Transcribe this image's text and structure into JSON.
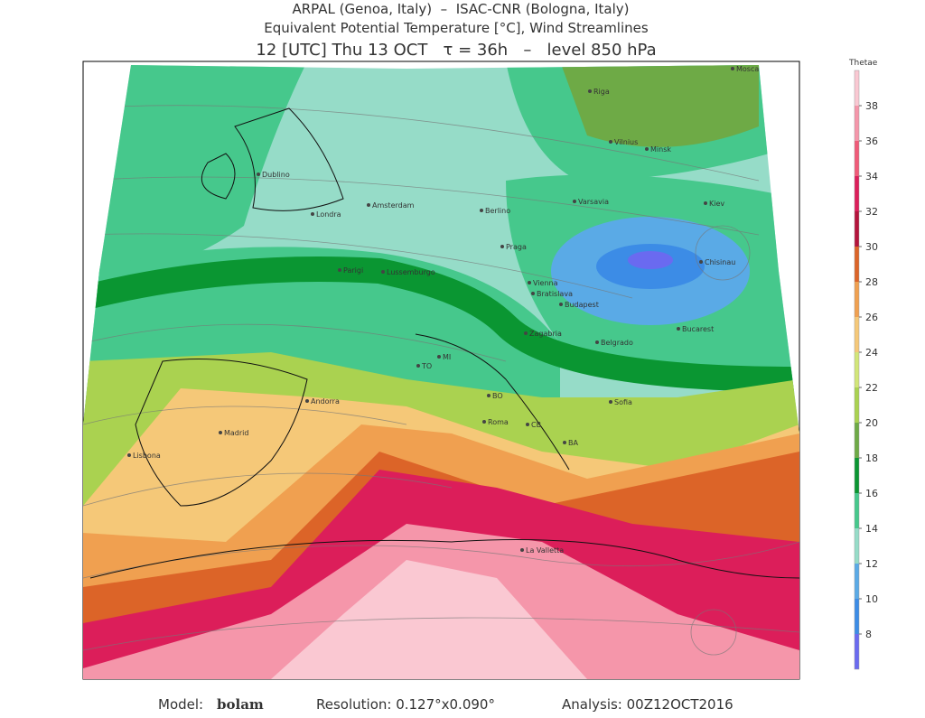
{
  "header": {
    "line1": "ARPAL (Genoa, Italy)  –  ISAC-CNR (Bologna, Italy)",
    "line2": "Equivalent Potential Temperature [°C], Wind Streamlines",
    "line3": "12 [UTC] Thu 13 OCT   τ = 36h   –   level 850 hPa"
  },
  "colorbar": {
    "title": "Thetae",
    "lim": [
      6,
      40
    ],
    "ticks": [
      8,
      10,
      12,
      14,
      16,
      18,
      20,
      22,
      24,
      26,
      28,
      30,
      32,
      34,
      36,
      38
    ],
    "colors": [
      "#6a6af0",
      "#3c8ce6",
      "#5aaae6",
      "#96dcc8",
      "#46c88c",
      "#0a9632",
      "#6eaa46",
      "#aad250",
      "#d2e678",
      "#f5c878",
      "#f0a050",
      "#dc6428",
      "#b4143c",
      "#dc1e5a",
      "#f05a78",
      "#f596aa",
      "#fac8d2"
    ]
  },
  "cities": [
    "Dublino",
    "Londra",
    "Amsterdam",
    "Berlino",
    "Varsavia",
    "Kiev",
    "Minsk",
    "Vilnius",
    "Riga",
    "Mosca",
    "Praga",
    "Parigi",
    "Lussemburgo",
    "Vienna",
    "Bratislava",
    "Budapest",
    "Chisinau",
    "Bucarest",
    "Belgrado",
    "Zagabria",
    "TO",
    "MI",
    "Andorra",
    "Madrid",
    "Lisbona",
    "Roma",
    "CB",
    "BA",
    "La Valletta",
    "BO",
    "Sofia"
  ],
  "footer": {
    "model_label": "Model:",
    "model": "bolam",
    "resolution": "Resolution: 0.127°x0.090°",
    "analysis": "Analysis: 00Z12OCT2016"
  }
}
